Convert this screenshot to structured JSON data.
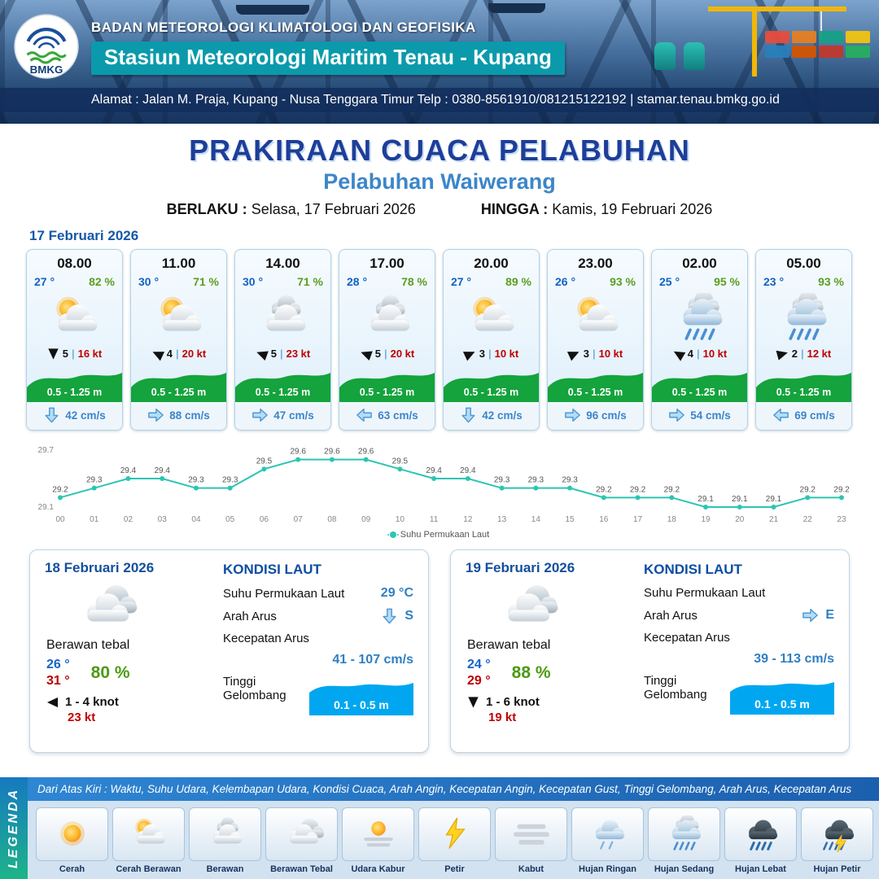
{
  "ui": {
    "sep": "|"
  },
  "header": {
    "logo_text": "BMKG",
    "agency": "BADAN METEOROLOGI KLIMATOLOGI DAN GEOFISIKA",
    "station": "Stasiun Meteorologi Maritim Tenau - Kupang",
    "address": "Alamat : Jalan M. Praja, Kupang - Nusa Tenggara Timur Telp : 0380-8561910/081215122192  | stamar.tenau.bmkg.go.id"
  },
  "title": {
    "main": "PRAKIRAAN CUACA PELABUHAN",
    "port": "Pelabuhan Waiwerang",
    "valid_from_label": "BERLAKU :",
    "valid_from": "Selasa, 17 Februari 2026",
    "valid_to_label": "HINGGA :",
    "valid_to": "Kamis, 19 Februari 2026"
  },
  "hourly_date": "17 Februari 2026",
  "hourly": [
    {
      "time": "08.00",
      "temp": "27 °",
      "rh": "82 %",
      "icon": "cerah-berawan",
      "wind_num": "5",
      "wind_kt": "16 kt",
      "wind_rot": 90,
      "wave": "0.5 - 1.25 m",
      "current_dir": "down",
      "current": "42 cm/s"
    },
    {
      "time": "11.00",
      "temp": "30 °",
      "rh": "71 %",
      "icon": "cerah-berawan",
      "wind_num": "4",
      "wind_kt": "20 kt",
      "wind_rot": 205,
      "wave": "0.5 - 1.25 m",
      "current_dir": "right",
      "current": "88 cm/s"
    },
    {
      "time": "14.00",
      "temp": "30 °",
      "rh": "71 %",
      "icon": "berawan",
      "wind_num": "5",
      "wind_kt": "23 kt",
      "wind_rot": 200,
      "wave": "0.5 - 1.25 m",
      "current_dir": "right",
      "current": "47 cm/s"
    },
    {
      "time": "17.00",
      "temp": "28 °",
      "rh": "78 %",
      "icon": "berawan",
      "wind_num": "5",
      "wind_kt": "20 kt",
      "wind_rot": 200,
      "wave": "0.5 - 1.25 m",
      "current_dir": "left",
      "current": "63 cm/s"
    },
    {
      "time": "20.00",
      "temp": "27 °",
      "rh": "89 %",
      "icon": "cerah-berawan",
      "wind_num": "3",
      "wind_kt": "10 kt",
      "wind_rot": 335,
      "wave": "0.5 - 1.25 m",
      "current_dir": "down",
      "current": "42 cm/s"
    },
    {
      "time": "23.00",
      "temp": "26 °",
      "rh": "93 %",
      "icon": "cerah-berawan",
      "wind_num": "3",
      "wind_kt": "10 kt",
      "wind_rot": 335,
      "wave": "0.5 - 1.25 m",
      "current_dir": "right",
      "current": "96 cm/s"
    },
    {
      "time": "02.00",
      "temp": "25 °",
      "rh": "95 %",
      "icon": "hujan-sedang",
      "wind_num": "4",
      "wind_kt": "10 kt",
      "wind_rot": 210,
      "wave": "0.5 - 1.25 m",
      "current_dir": "right",
      "current": "54 cm/s"
    },
    {
      "time": "05.00",
      "temp": "23 °",
      "rh": "93 %",
      "icon": "hujan-sedang",
      "wind_num": "2",
      "wind_kt": "12 kt",
      "wind_rot": 345,
      "wave": "0.5 - 1.25 m",
      "current_dir": "left",
      "current": "69 cm/s"
    }
  ],
  "chart_data": {
    "type": "line",
    "x": [
      "00",
      "01",
      "02",
      "03",
      "04",
      "05",
      "06",
      "07",
      "08",
      "09",
      "10",
      "11",
      "12",
      "13",
      "14",
      "15",
      "16",
      "17",
      "18",
      "19",
      "20",
      "21",
      "22",
      "23"
    ],
    "series": [
      {
        "name": "Suhu Permukaan Laut",
        "values": [
          29.2,
          29.3,
          29.4,
          29.4,
          29.3,
          29.3,
          29.5,
          29.6,
          29.6,
          29.6,
          29.5,
          29.4,
          29.4,
          29.3,
          29.3,
          29.3,
          29.2,
          29.2,
          29.2,
          29.1,
          29.1,
          29.1,
          29.2,
          29.2
        ]
      }
    ],
    "ylim": [
      29.1,
      29.7
    ],
    "y_ticks": [
      "29.7",
      "29.1"
    ],
    "line_color": "#2cc5b2",
    "legend": "Suhu Permukaan Laut",
    "grid": false,
    "legend_position": "bottom"
  },
  "daily": [
    {
      "date": "18 Februari 2026",
      "icon": "berawan-tebal",
      "desc": "Berawan tebal",
      "temp_min": "26 °",
      "temp_max": "31 °",
      "rh": "80 %",
      "wind_rot": 180,
      "wind_range": "1 - 4 knot",
      "gust": "23 kt",
      "sea_title": "KONDISI LAUT",
      "sst_label": "Suhu Permukaan Laut",
      "sst": "29 °C",
      "cur_dir_label": "Arah Arus",
      "cur_dir": "down",
      "cur_dir_text": "S",
      "cur_speed_label": "Kecepatan Arus",
      "cur_speed": "41 - 107 cm/s",
      "wave_label": "Tinggi Gelombang",
      "wave": "0.1 - 0.5 m"
    },
    {
      "date": "19 Februari 2026",
      "icon": "berawan-tebal",
      "desc": "Berawan tebal",
      "temp_min": "24 °",
      "temp_max": "29 °",
      "rh": "88 %",
      "wind_rot": 90,
      "wind_range": "1 - 6 knot",
      "gust": "19 kt",
      "sea_title": "KONDISI LAUT",
      "sst_label": "Suhu Permukaan Laut",
      "sst": "",
      "cur_dir_label": "Arah Arus",
      "cur_dir": "right",
      "cur_dir_text": "E",
      "cur_speed_label": "Kecepatan Arus",
      "cur_speed": "39 - 113 cm/s",
      "wave_label": "Tinggi Gelombang",
      "wave": "0.1 - 0.5 m"
    }
  ],
  "legend": {
    "title": "LEGENDA",
    "note": "Dari Atas Kiri : Waktu, Suhu Udara, Kelembapan Udara, Kondisi Cuaca, Arah Angin, Kecepatan Angin, Kecepatan Gust, Tinggi Gelombang, Arah Arus, Kecepatan Arus",
    "items": [
      {
        "label": "Cerah",
        "icon": "cerah"
      },
      {
        "label": "Cerah Berawan",
        "icon": "cerah-berawan"
      },
      {
        "label": "Berawan",
        "icon": "berawan"
      },
      {
        "label": "Berawan Tebal",
        "icon": "berawan-tebal"
      },
      {
        "label": "Udara Kabur",
        "icon": "udara-kabur"
      },
      {
        "label": "Petir",
        "icon": "petir"
      },
      {
        "label": "Kabut",
        "icon": "kabut"
      },
      {
        "label": "Hujan Ringan",
        "icon": "hujan-ringan"
      },
      {
        "label": "Hujan Sedang",
        "icon": "hujan-sedang"
      },
      {
        "label": "Hujan Lebat",
        "icon": "hujan-lebat"
      },
      {
        "label": "Hujan Petir",
        "icon": "hujan-petir"
      }
    ]
  },
  "colors": {
    "accent_navy": "#1d3e9a",
    "accent_blue": "#3c86c9",
    "teal_box": "#0b9aab",
    "wave_green": "#14a33c",
    "gust_red": "#c00000",
    "humidity_green": "#5a9e1e",
    "current_blue": "#3c85c9",
    "chart_teal": "#2cc5b2",
    "wave_box_blue": "#00a7f0"
  }
}
